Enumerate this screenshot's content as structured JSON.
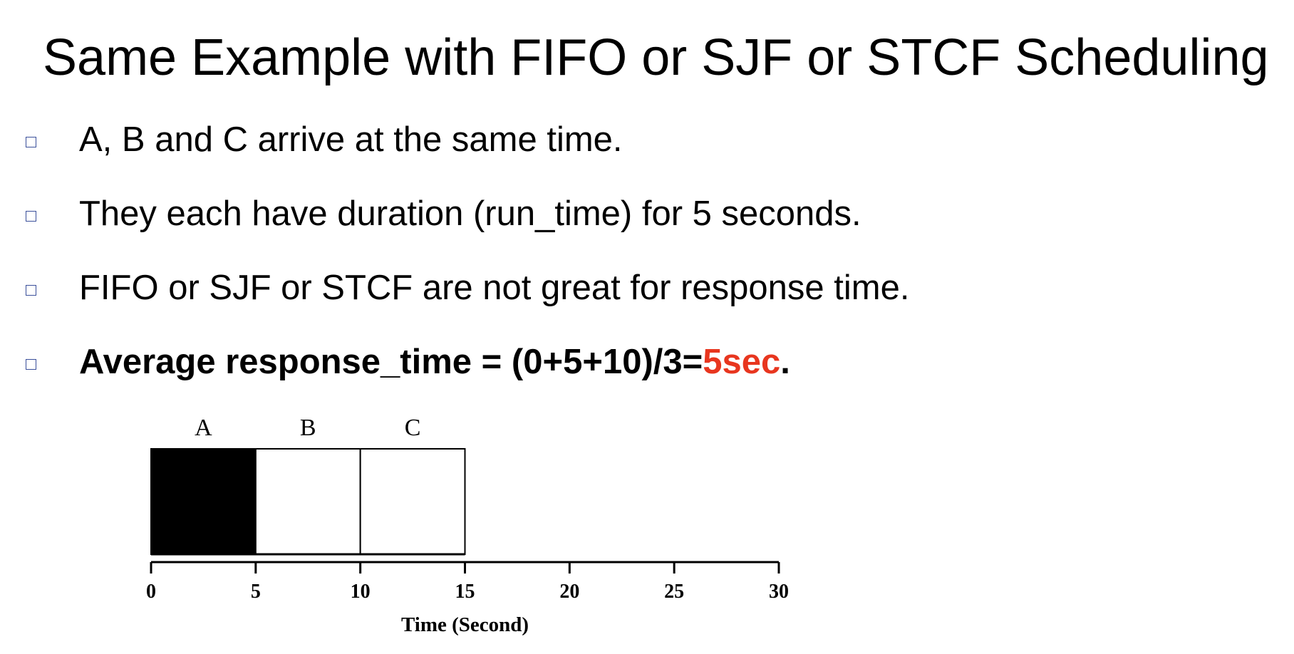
{
  "slide": {
    "title": "Same Example with FIFO or SJF or STCF Scheduling",
    "bullets": [
      {
        "text": "A, B and C arrive at the same time."
      },
      {
        "text": "They each have duration (run_time) for 5 seconds."
      },
      {
        "text": "FIFO or SJF or STCF are not great for response time."
      }
    ],
    "highlight_bullet": {
      "prefix": "Average response_time = (0+5+10)/3=",
      "value": "5sec",
      "suffix": "."
    }
  },
  "colors": {
    "accent": "#e8361f",
    "bullet_box": "#3a4f9a",
    "job_A": "#000000",
    "job_other": "#ffffff"
  },
  "chart_data": {
    "type": "gantt",
    "jobs": [
      {
        "name": "A",
        "start": 0,
        "end": 5,
        "fill": "black"
      },
      {
        "name": "B",
        "start": 5,
        "end": 10,
        "fill": "white"
      },
      {
        "name": "C",
        "start": 10,
        "end": 15,
        "fill": "white"
      }
    ],
    "x_ticks": [
      "0",
      "5",
      "10",
      "15",
      "20",
      "25",
      "30"
    ],
    "xlim": [
      0,
      30
    ],
    "xlabel": "Time (Second)",
    "grid": false
  }
}
